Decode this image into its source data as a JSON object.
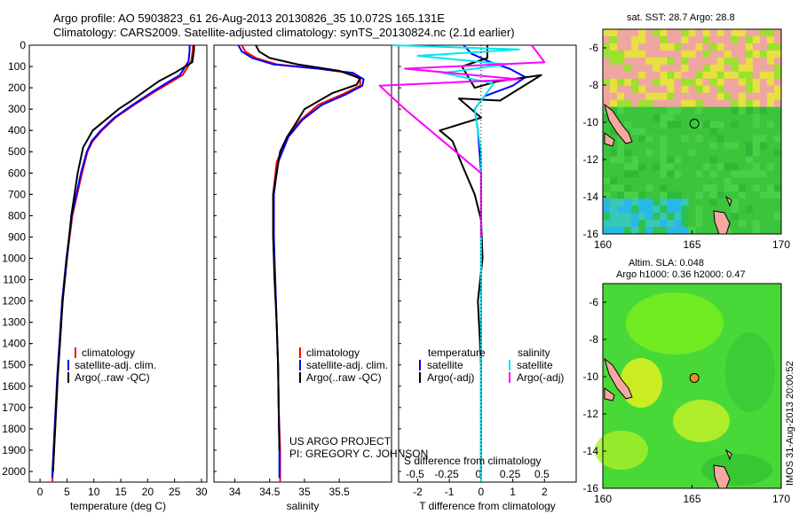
{
  "header": {
    "title_line1": "Argo profile: AO 5903823_61 26-Aug-2013 20130826_35 10.072S 165.131E",
    "title_line2": "Climatology: CARS2009. Satellite-adjusted climatology: synTS_20130824.nc (2.1d earlier)"
  },
  "colors": {
    "climatology": "#ff0000",
    "satellite": "#0000ff",
    "argo": "#000000",
    "sal_satellite": "#00e5ee",
    "sal_argo": "#ff00ff"
  },
  "footer": {
    "credit1": "US ARGO PROJECT",
    "credit2": "PI: GREGORY C. JOHNSON",
    "timestamp": "IMOS 31-Aug-2013 20:00:52"
  },
  "chart_data": [
    {
      "type": "line",
      "panel": "temperature",
      "xlabel": "temperature (deg C)",
      "ylabel": "",
      "xlim": [
        -2,
        31
      ],
      "ylim": [
        2050,
        0
      ],
      "xticks": [
        0,
        5,
        10,
        15,
        20,
        25,
        30
      ],
      "yticks": [
        0,
        100,
        200,
        300,
        400,
        500,
        600,
        700,
        800,
        900,
        1000,
        1100,
        1200,
        1300,
        1400,
        1500,
        1600,
        1700,
        1800,
        1900,
        2000
      ],
      "legend": [
        "climatology",
        "satellite-adj. clim.",
        "Argo(..raw -QC)"
      ],
      "legend_position": "lower-left",
      "series": [
        {
          "name": "climatology",
          "color": "#ff0000",
          "x": [
            28.4,
            28.4,
            28.1,
            26.5,
            24.5,
            21.2,
            17.5,
            14.0,
            11.5,
            9.8,
            8.8,
            7.8,
            6.0,
            5.0,
            4.2,
            3.7,
            3.3,
            3.0,
            2.7,
            2.5,
            2.4,
            2.3,
            2.3
          ],
          "y": [
            0,
            25,
            75,
            140,
            170,
            220,
            280,
            340,
            400,
            450,
            500,
            600,
            800,
            1000,
            1200,
            1400,
            1550,
            1700,
            1850,
            1950,
            2000,
            2030,
            2050
          ]
        },
        {
          "name": "satellite-adj. clim.",
          "color": "#0000ff",
          "x": [
            27.8,
            27.8,
            27.6,
            26.0,
            24.0,
            20.8,
            17.2,
            13.8,
            11.3,
            9.6,
            8.7,
            7.6,
            5.9,
            4.9,
            4.1,
            3.6,
            3.2,
            2.9,
            2.6,
            2.4,
            2.3,
            2.25
          ],
          "y": [
            0,
            25,
            75,
            140,
            170,
            220,
            280,
            340,
            400,
            450,
            500,
            600,
            800,
            1000,
            1200,
            1400,
            1550,
            1700,
            1850,
            1950,
            2000,
            2030
          ]
        },
        {
          "name": "Argo(..raw -QC)",
          "color": "#000000",
          "x": [
            28.6,
            28.6,
            28.3,
            25.0,
            22.0,
            19.2,
            17.0,
            14.6,
            12.2,
            9.8,
            8.0,
            7.0,
            5.8,
            5.0,
            4.2,
            3.7,
            3.3,
            3.0,
            2.7,
            2.5,
            2.4
          ],
          "y": [
            0,
            25,
            80,
            130,
            170,
            220,
            260,
            300,
            350,
            400,
            480,
            600,
            800,
            1000,
            1200,
            1400,
            1550,
            1700,
            1850,
            1950,
            2000
          ]
        }
      ]
    },
    {
      "type": "line",
      "panel": "salinity",
      "xlabel": "salinity",
      "ylabel": "",
      "xlim": [
        33.7,
        36.25
      ],
      "ylim": [
        2050,
        0
      ],
      "xticks": [
        34,
        34.5,
        35,
        35.5
      ],
      "xticklabels": [
        "34",
        "34.5",
        "35",
        "35.5"
      ],
      "legend": [
        "climatology",
        "satellite-adj. clim.",
        "Argo(..raw -QC)"
      ],
      "legend_position": "lower-right",
      "series": [
        {
          "name": "climatology",
          "color": "#ff0000",
          "x": [
            34.1,
            34.15,
            34.3,
            34.6,
            35.2,
            35.65,
            35.8,
            35.8,
            35.55,
            35.2,
            34.95,
            34.75,
            34.6,
            34.55,
            34.55,
            34.58,
            34.6,
            34.62,
            34.63,
            34.65,
            34.65
          ],
          "y": [
            0,
            30,
            60,
            90,
            110,
            130,
            160,
            190,
            230,
            280,
            350,
            430,
            550,
            700,
            900,
            1100,
            1300,
            1500,
            1700,
            1900,
            2050
          ]
        },
        {
          "name": "satellite-adj. clim.",
          "color": "#0000ff",
          "x": [
            34.05,
            34.1,
            34.25,
            34.55,
            35.2,
            35.7,
            35.85,
            35.83,
            35.6,
            35.25,
            34.97,
            34.77,
            34.62,
            34.56,
            34.56,
            34.58,
            34.6,
            34.62,
            34.63,
            34.64,
            34.64
          ],
          "y": [
            0,
            30,
            60,
            90,
            110,
            130,
            160,
            190,
            230,
            280,
            350,
            430,
            550,
            700,
            900,
            1100,
            1300,
            1500,
            1700,
            1900,
            2030
          ]
        },
        {
          "name": "Argo(..raw -QC)",
          "color": "#000000",
          "x": [
            34.3,
            34.35,
            34.5,
            34.9,
            35.5,
            35.8,
            35.75,
            35.4,
            35.0,
            34.85,
            34.75,
            34.65,
            34.6,
            34.55,
            34.55,
            34.57,
            34.6,
            34.62,
            34.63,
            34.64
          ],
          "y": [
            0,
            30,
            60,
            90,
            120,
            155,
            185,
            225,
            300,
            380,
            430,
            500,
            600,
            700,
            900,
            1100,
            1300,
            1500,
            1700,
            1900
          ]
        }
      ]
    },
    {
      "type": "line",
      "panel": "difference",
      "xlabel": "T difference from climatology",
      "xlabel_top": "S difference from climatology",
      "ylabel": "",
      "xlim": [
        -2.6,
        3.0
      ],
      "ylim": [
        2050,
        0
      ],
      "xticks": [
        -2,
        -1,
        0,
        1,
        2
      ],
      "xticklabels": [
        "-2",
        "-1",
        "0",
        "1",
        "2"
      ],
      "s_ticks": [
        -0.5,
        -0.25,
        0,
        0.25,
        0.5
      ],
      "s_ticklabels": [
        "-0.5",
        "-0.25",
        "0",
        "0.25",
        "0.5"
      ],
      "legend_temperature": {
        "heading": "temperature",
        "entries": [
          "satellite",
          "Argo(-adj)"
        ]
      },
      "legend_salinity": {
        "heading": "salinity",
        "entries": [
          "satellite",
          "Argo(-adj)"
        ]
      },
      "legend_position": "lower-center",
      "series": [
        {
          "name": "satellite",
          "variable": "temperature",
          "color": "#0000ff",
          "x": [
            -0.55,
            -0.3,
            0.3,
            0.9,
            1.4,
            1.0,
            0.1,
            -0.2,
            -0.1,
            0.0,
            0.0,
            0.0,
            0.0,
            0.0
          ],
          "y": [
            0,
            40,
            80,
            110,
            150,
            190,
            240,
            300,
            400,
            600,
            900,
            1200,
            1600,
            2000
          ]
        },
        {
          "name": "Argo(-adj)",
          "variable": "temperature",
          "color": "#000000",
          "x": [
            0.2,
            0.2,
            -0.6,
            -0.2,
            0.5,
            1.9,
            0.6,
            -0.7,
            0.0,
            -1.3,
            -0.9,
            -0.6,
            -0.2,
            0.0,
            0.05,
            -0.1,
            0.0,
            0.0
          ],
          "y": [
            0,
            60,
            100,
            200,
            170,
            140,
            260,
            250,
            340,
            400,
            450,
            560,
            700,
            820,
            1000,
            1200,
            1500,
            2000
          ]
        },
        {
          "name": "satellite",
          "variable": "salinity",
          "color": "#00e5ee",
          "x": [
            -0.7,
            0.3,
            -0.5,
            0.2,
            -0.3,
            0.1,
            -0.05,
            0.0,
            0.0,
            0.0,
            0.0,
            0.0,
            0.0
          ],
          "y": [
            0,
            20,
            50,
            90,
            130,
            180,
            300,
            500,
            800,
            1200,
            1500,
            1800,
            2050
          ]
        },
        {
          "name": "Argo(-adj)",
          "variable": "salinity",
          "color": "#ff00ff",
          "x": [
            0.4,
            0.5,
            -0.6,
            0.3,
            -0.8,
            -0.6,
            -0.3,
            0.0,
            0.0,
            0.0
          ],
          "y": [
            0,
            80,
            110,
            160,
            190,
            300,
            450,
            600,
            800,
            900
          ]
        }
      ]
    },
    {
      "type": "heatmap",
      "panel": "sat-sst-map",
      "title": "sat. SST: 28.7 Argo: 28.8",
      "xlim": [
        160,
        170
      ],
      "ylim": [
        -16,
        -5
      ],
      "xticks": [
        160,
        165,
        170
      ],
      "yticks": [
        -16,
        -14,
        -12,
        -10,
        -8,
        -6
      ],
      "float_position": {
        "lon": 165.131,
        "lat": -10.072,
        "marker": "circle-open"
      }
    },
    {
      "type": "heatmap",
      "panel": "altimetry-map",
      "title": "Altim. SLA: 0.048",
      "subtitle": "Argo h1000: 0.36 h2000: 0.47",
      "xlim": [
        160,
        170
      ],
      "ylim": [
        -16,
        -5
      ],
      "xticks": [
        160,
        165,
        170
      ],
      "yticks": [
        -16,
        -14,
        -12,
        -10,
        -8,
        -6
      ],
      "float_position": {
        "lon": 165.131,
        "lat": -10.072,
        "marker": "circle-filled-orange"
      }
    }
  ]
}
